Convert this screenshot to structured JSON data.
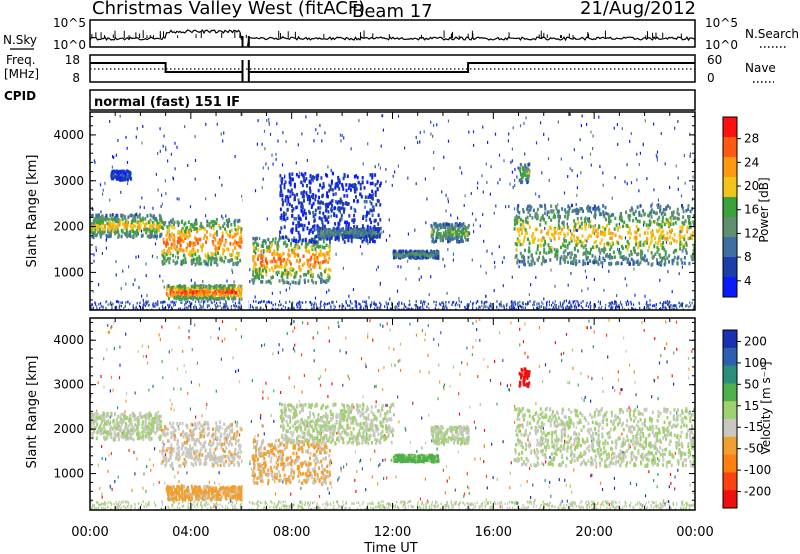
{
  "header": {
    "station": "Christmas Valley West (fitACF)",
    "beam": "Beam 17",
    "date": "21/Aug/2012"
  },
  "strips": {
    "nsky": {
      "label": "N.Sky",
      "ticks": [
        "10^5",
        "10^0"
      ]
    },
    "nsearch": {
      "label": "N.Search",
      "ticks": [
        "10^5",
        "10^0"
      ]
    },
    "freq": {
      "label_line1": "Freq.",
      "label_line2": "[MHz]",
      "ticks": [
        "18",
        "8"
      ]
    },
    "nave": {
      "label": "Nave",
      "ticks": [
        "60",
        "0"
      ]
    },
    "cpid": {
      "label": "CPID",
      "value": "normal (fast) 151 IF"
    }
  },
  "colors": {
    "power_scale": [
      "#0a1cff",
      "#1d3ea8",
      "#3f6fa0",
      "#5e8f6e",
      "#3aa23a",
      "#f2c318",
      "#ff9a10",
      "#ff5a10",
      "#ff1010"
    ],
    "velocity_scale": [
      "#1a30b0",
      "#2d5fb0",
      "#2a8f7a",
      "#4db04d",
      "#9fd16f",
      "#c8c8c0",
      "#f0a030",
      "#ff8010",
      "#ff4010",
      "#ee1010"
    ]
  },
  "chart_data": [
    {
      "type": "heatmap",
      "title": "",
      "xlabel": "",
      "ylabel": "Slant Range [km]",
      "xlim": [
        "00:00",
        "24:00"
      ],
      "ylim": [
        180,
        4500
      ],
      "x_ticks": [
        "00:00",
        "04:00",
        "08:00",
        "12:00",
        "16:00",
        "20:00",
        "00:00"
      ],
      "y_ticks": [
        "1000",
        "2000",
        "3000",
        "4000"
      ],
      "colorbar": {
        "label": "Power [dB]",
        "ticks": [
          "28",
          "24",
          "20",
          "16",
          "12",
          "8",
          "4"
        ],
        "range": [
          0,
          30
        ]
      },
      "regions": [
        {
          "t_start": 0.0,
          "t_end": 2.8,
          "range_start": 1800,
          "range_end": 2300,
          "value": 20
        },
        {
          "t_start": 0.8,
          "t_end": 1.6,
          "range_start": 3050,
          "range_end": 3250,
          "value": 6
        },
        {
          "t_start": 2.8,
          "t_end": 6.0,
          "range_start": 1200,
          "range_end": 2200,
          "value": 25
        },
        {
          "t_start": 3.0,
          "t_end": 6.0,
          "range_start": 450,
          "range_end": 750,
          "value": 27
        },
        {
          "t_start": 6.4,
          "t_end": 9.5,
          "range_start": 800,
          "range_end": 1800,
          "value": 24
        },
        {
          "t_start": 7.5,
          "t_end": 11.5,
          "range_start": 1700,
          "range_end": 3200,
          "value": 5
        },
        {
          "t_start": 9.0,
          "t_end": 11.5,
          "range_start": 1800,
          "range_end": 2000,
          "value": 12
        },
        {
          "t_start": 12.0,
          "t_end": 13.8,
          "range_start": 1350,
          "range_end": 1500,
          "value": 13
        },
        {
          "t_start": 13.5,
          "t_end": 15.0,
          "range_start": 1700,
          "range_end": 2100,
          "value": 16
        },
        {
          "t_start": 16.8,
          "t_end": 24.0,
          "range_start": 1200,
          "range_end": 2500,
          "value": 20
        },
        {
          "t_start": 17.0,
          "t_end": 17.4,
          "range_start": 3000,
          "range_end": 3400,
          "value": 17
        }
      ]
    },
    {
      "type": "heatmap",
      "title": "",
      "xlabel": "Time UT",
      "ylabel": "Slant Range [km]",
      "xlim": [
        "00:00",
        "24:00"
      ],
      "ylim": [
        180,
        4500
      ],
      "x_ticks": [
        "00:00",
        "04:00",
        "08:00",
        "12:00",
        "16:00",
        "20:00",
        "00:00"
      ],
      "y_ticks": [
        "1000",
        "2000",
        "3000",
        "4000"
      ],
      "colorbar": {
        "label": "Velocity [m s⁻¹]",
        "ticks": [
          "200",
          "100",
          "50",
          "15",
          "-15",
          "-50",
          "-100",
          "-200"
        ],
        "range": [
          -250,
          250
        ]
      },
      "regions": [
        {
          "t_start": 0.0,
          "t_end": 2.8,
          "range_start": 1800,
          "range_end": 2400,
          "value": 0
        },
        {
          "t_start": 2.8,
          "t_end": 6.0,
          "range_start": 1200,
          "range_end": 2200,
          "value": -40
        },
        {
          "t_start": 3.0,
          "t_end": 6.0,
          "range_start": 450,
          "range_end": 750,
          "value": -60
        },
        {
          "t_start": 6.4,
          "t_end": 9.5,
          "range_start": 800,
          "range_end": 1800,
          "value": -55
        },
        {
          "t_start": 7.5,
          "t_end": 12.0,
          "range_start": 1700,
          "range_end": 2600,
          "value": 0
        },
        {
          "t_start": 12.0,
          "t_end": 13.8,
          "range_start": 1300,
          "range_end": 1450,
          "value": 60
        },
        {
          "t_start": 13.5,
          "t_end": 15.0,
          "range_start": 1700,
          "range_end": 2100,
          "value": 0
        },
        {
          "t_start": 16.8,
          "t_end": 24.0,
          "range_start": 1200,
          "range_end": 2500,
          "value": 0
        },
        {
          "t_start": 17.0,
          "t_end": 17.4,
          "range_start": 3000,
          "range_end": 3400,
          "value": -230
        }
      ]
    }
  ]
}
